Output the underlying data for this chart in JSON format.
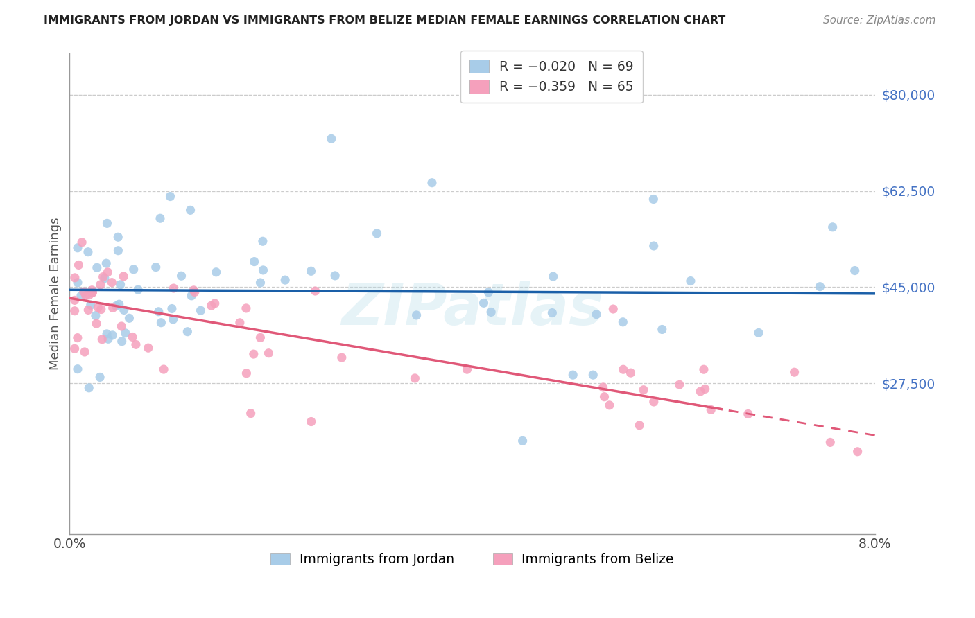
{
  "title": "IMMIGRANTS FROM JORDAN VS IMMIGRANTS FROM BELIZE MEDIAN FEMALE EARNINGS CORRELATION CHART",
  "source": "Source: ZipAtlas.com",
  "ylabel": "Median Female Earnings",
  "xlim": [
    0.0,
    0.08
  ],
  "ylim": [
    0,
    87500
  ],
  "yticks": [
    27500,
    45000,
    62500,
    80000
  ],
  "xticks": [
    0.0,
    0.08
  ],
  "xtick_labels": [
    "0.0%",
    "8.0%"
  ],
  "jordan_color": "#a8cce8",
  "belize_color": "#f5a0bc",
  "jordan_R": -0.02,
  "jordan_N": 69,
  "belize_R": -0.359,
  "belize_N": 65,
  "trend_jordan_color": "#1a5fa8",
  "trend_belize_color": "#e05878",
  "r_color_jordan": "#e05060",
  "r_color_belize": "#e05060",
  "n_color": "#1a5fa8",
  "watermark": "ZIPatlas",
  "legend_label_jordan": "Immigrants from Jordan",
  "legend_label_belize": "Immigrants from Belize",
  "jordan_trend_y0": 44500,
  "jordan_trend_y1": 43800,
  "belize_trend_y0": 43000,
  "belize_trend_y1": 18000
}
